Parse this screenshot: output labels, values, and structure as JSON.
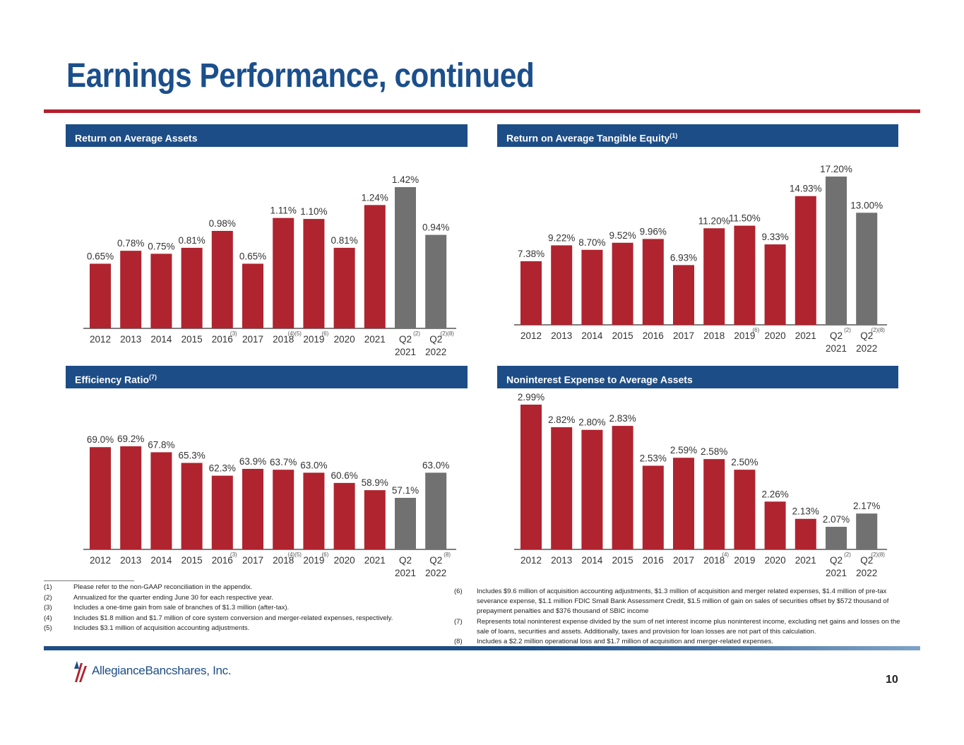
{
  "page": {
    "title": "Earnings Performance, continued",
    "page_number": "10",
    "logo_text": "AllegianceBancshares, Inc.",
    "logo_part1": "Allegiance",
    "logo_part2": "Bancshares, Inc."
  },
  "colors": {
    "title": "#1b4f8c",
    "header_bg": "#1d4d86",
    "accent_red": "#b3202e",
    "bar_red": "#b0242f",
    "bar_gray": "#717171"
  },
  "chart_data": [
    {
      "id": "roaa",
      "type": "bar",
      "title": "Return on Average Assets",
      "title_sup": "",
      "categories": [
        [
          "2012"
        ],
        [
          "2013"
        ],
        [
          "2014"
        ],
        [
          "2015"
        ],
        [
          "2016"
        ],
        [
          "2017"
        ],
        [
          "2018"
        ],
        [
          "2019"
        ],
        [
          "2020"
        ],
        [
          "2021"
        ],
        [
          "Q2",
          "2021"
        ],
        [
          "Q2",
          "2022"
        ]
      ],
      "values": [
        0.65,
        0.78,
        0.75,
        0.81,
        0.98,
        0.65,
        1.11,
        1.1,
        0.81,
        1.24,
        1.42,
        0.94
      ],
      "labels": [
        "0.65%",
        "0.78%",
        "0.75%",
        "0.81%",
        "0.98%",
        "0.65%",
        "1.11%",
        "1.10%",
        "0.81%",
        "1.24%",
        "1.42%",
        "0.94%"
      ],
      "colors": [
        "red",
        "red",
        "red",
        "red",
        "red",
        "red",
        "red",
        "red",
        "red",
        "red",
        "gray",
        "gray"
      ],
      "footnotes": [
        "",
        "",
        "",
        "",
        "(3)",
        "",
        "(4)(5)",
        "(6)",
        "",
        "",
        "(2)",
        "(2)(8)"
      ],
      "ylim": [
        0,
        1.42
      ]
    },
    {
      "id": "rote",
      "type": "bar",
      "title": "Return on Average Tangible Equity",
      "title_sup": "(1)",
      "categories": [
        [
          "2012"
        ],
        [
          "2013"
        ],
        [
          "2014"
        ],
        [
          "2015"
        ],
        [
          "2016"
        ],
        [
          "2017"
        ],
        [
          "2018"
        ],
        [
          "2019"
        ],
        [
          "2020"
        ],
        [
          "2021"
        ],
        [
          "Q2",
          "2021"
        ],
        [
          "Q2",
          "2022"
        ]
      ],
      "values": [
        7.38,
        9.22,
        8.7,
        9.52,
        9.96,
        6.93,
        11.2,
        11.5,
        9.33,
        14.93,
        17.2,
        13.0
      ],
      "labels": [
        "7.38%",
        "9.22%",
        "8.70%",
        "9.52%",
        "9.96%",
        "6.93%",
        "11.20%",
        "11.50%",
        "9.33%",
        "14.93%",
        "17.20%",
        "13.00%"
      ],
      "colors": [
        "red",
        "red",
        "red",
        "red",
        "red",
        "red",
        "red",
        "red",
        "red",
        "red",
        "gray",
        "gray"
      ],
      "footnotes": [
        "",
        "",
        "",
        "",
        "",
        "",
        "",
        "(6)",
        "",
        "",
        "(2)",
        "(2)(8)"
      ],
      "ylim": [
        0,
        17.2
      ]
    },
    {
      "id": "eff",
      "type": "bar",
      "title": "Efficiency Ratio",
      "title_sup": "(7)",
      "categories": [
        [
          "2012"
        ],
        [
          "2013"
        ],
        [
          "2014"
        ],
        [
          "2015"
        ],
        [
          "2016"
        ],
        [
          "2017"
        ],
        [
          "2018"
        ],
        [
          "2019"
        ],
        [
          "2020"
        ],
        [
          "2021"
        ],
        [
          "Q2",
          "2021"
        ],
        [
          "Q2",
          "2022"
        ]
      ],
      "values": [
        69.0,
        69.2,
        67.8,
        65.3,
        62.3,
        63.9,
        63.7,
        63.0,
        60.6,
        58.9,
        57.1,
        63.0
      ],
      "labels": [
        "69.0%",
        "69.2%",
        "67.8%",
        "65.3%",
        "62.3%",
        "63.9%",
        "63.7%",
        "63.0%",
        "60.6%",
        "58.9%",
        "57.1%",
        "63.0%"
      ],
      "colors": [
        "red",
        "red",
        "red",
        "red",
        "red",
        "red",
        "red",
        "red",
        "red",
        "red",
        "gray",
        "gray"
      ],
      "footnotes": [
        "",
        "",
        "",
        "",
        "(3)",
        "",
        "(4)(5)",
        "(6)",
        "",
        "",
        "",
        "(8)"
      ],
      "ylim": [
        45,
        69.2
      ]
    },
    {
      "id": "nie",
      "type": "bar",
      "title": "Noninterest Expense to Average Assets",
      "title_sup": "",
      "categories": [
        [
          "2012"
        ],
        [
          "2013"
        ],
        [
          "2014"
        ],
        [
          "2015"
        ],
        [
          "2016"
        ],
        [
          "2017"
        ],
        [
          "2018"
        ],
        [
          "2019"
        ],
        [
          "2020"
        ],
        [
          "2021"
        ],
        [
          "Q2",
          "2021"
        ],
        [
          "Q2",
          "2022"
        ]
      ],
      "values": [
        2.99,
        2.82,
        2.8,
        2.83,
        2.53,
        2.59,
        2.58,
        2.5,
        2.26,
        2.13,
        2.07,
        2.17
      ],
      "labels": [
        "2.99%",
        "2.82%",
        "2.80%",
        "2.83%",
        "2.53%",
        "2.59%",
        "2.58%",
        "2.50%",
        "2.26%",
        "2.13%",
        "2.07%",
        "2.17%"
      ],
      "colors": [
        "red",
        "red",
        "red",
        "red",
        "red",
        "red",
        "red",
        "red",
        "red",
        "red",
        "gray",
        "gray"
      ],
      "footnotes": [
        "",
        "",
        "",
        "",
        "",
        "",
        "(4)",
        "",
        "",
        "",
        "(2)",
        "(2)(8)"
      ],
      "ylim": [
        1.9,
        2.99
      ]
    }
  ],
  "footnotes_left": [
    {
      "num": "(1)",
      "text": "Please refer to the non-GAAP reconciliation in the appendix."
    },
    {
      "num": "(2)",
      "text": "Annualized for the quarter ending June 30 for each respective year."
    },
    {
      "num": "(3)",
      "text": "Includes a one-time gain from sale of branches of $1.3 million (after-tax)."
    },
    {
      "num": "(4)",
      "text": "Includes $1.8 million and $1.7 million of core system conversion and merger-related expenses, respectively."
    },
    {
      "num": "(5)",
      "text": "Includes $3.1 million of acquisition accounting adjustments."
    }
  ],
  "footnotes_right": [
    {
      "num": "(6)",
      "text": "Includes $9.6 million of acquisition accounting adjustments, $1.3 million of acquisition and merger related expenses, $1.4 million of pre-tax severance expense, $1.1 million FDIC Small Bank Assessment Credit, $1.5 million of gain on sales of securities offset by $572 thousand of prepayment penalties and $376 thousand of SBIC income"
    },
    {
      "num": "(7)",
      "text": "Represents total noninterest expense divided by the sum of net interest income plus noninterest income, excluding net gains and losses on the sale of loans, securities and assets. Additionally, taxes and provision for loan losses are not part of this calculation."
    },
    {
      "num": "(8)",
      "text": "Includes a $2.2 million operational loss and $1.7 million of acquisition and merger-related expenses."
    }
  ]
}
